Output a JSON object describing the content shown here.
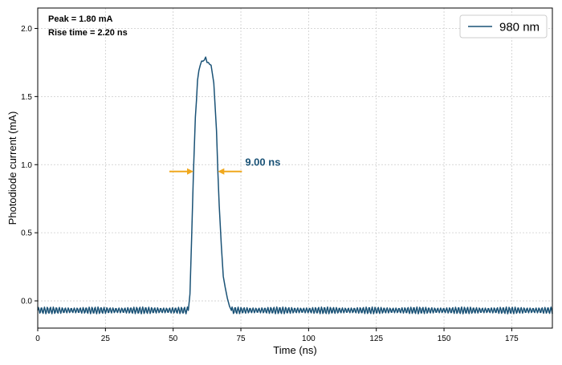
{
  "chart_data": {
    "type": "line",
    "xlabel": "Time (ns)",
    "ylabel": "Photodiode current (mA)",
    "xlim": [
      0,
      190
    ],
    "ylim": [
      -0.2,
      2.15
    ],
    "xticks": [
      0,
      25,
      50,
      75,
      100,
      125,
      150,
      175
    ],
    "yticks": [
      0.0,
      0.5,
      1.0,
      1.5,
      2.0
    ],
    "grid": true,
    "legend_position": "top-right",
    "annotations": {
      "peak": "Peak = 1.80 mA",
      "rise_time": "Rise time = 2.20  ns",
      "fwhm_label": "9.00 ns",
      "fwhm_arrow_level": 0.95,
      "fwhm_left_x": 57.5,
      "fwhm_right_x": 66.5
    },
    "colors": {
      "series": "#1a5276",
      "arrows": "#f0a81e",
      "fwhm_text": "#1a5276"
    },
    "series": [
      {
        "name": "980 nm",
        "baseline": -0.07,
        "noise_amplitude": 0.025,
        "noise_period_ns": 1.1,
        "pulse_points": [
          [
            55.6,
            -0.07
          ],
          [
            56.2,
            0.05
          ],
          [
            56.8,
            0.45
          ],
          [
            57.5,
            0.95
          ],
          [
            58.2,
            1.35
          ],
          [
            59.0,
            1.62
          ],
          [
            60.0,
            1.73
          ],
          [
            61.0,
            1.76
          ],
          [
            62.0,
            1.79
          ],
          [
            63.0,
            1.75
          ],
          [
            64.0,
            1.73
          ],
          [
            65.0,
            1.6
          ],
          [
            66.0,
            1.25
          ],
          [
            66.5,
            0.95
          ],
          [
            67.0,
            0.7
          ],
          [
            67.8,
            0.4
          ],
          [
            68.5,
            0.18
          ],
          [
            69.2,
            0.1
          ],
          [
            70.0,
            0.02
          ],
          [
            70.8,
            -0.04
          ],
          [
            71.5,
            -0.07
          ]
        ]
      }
    ]
  }
}
